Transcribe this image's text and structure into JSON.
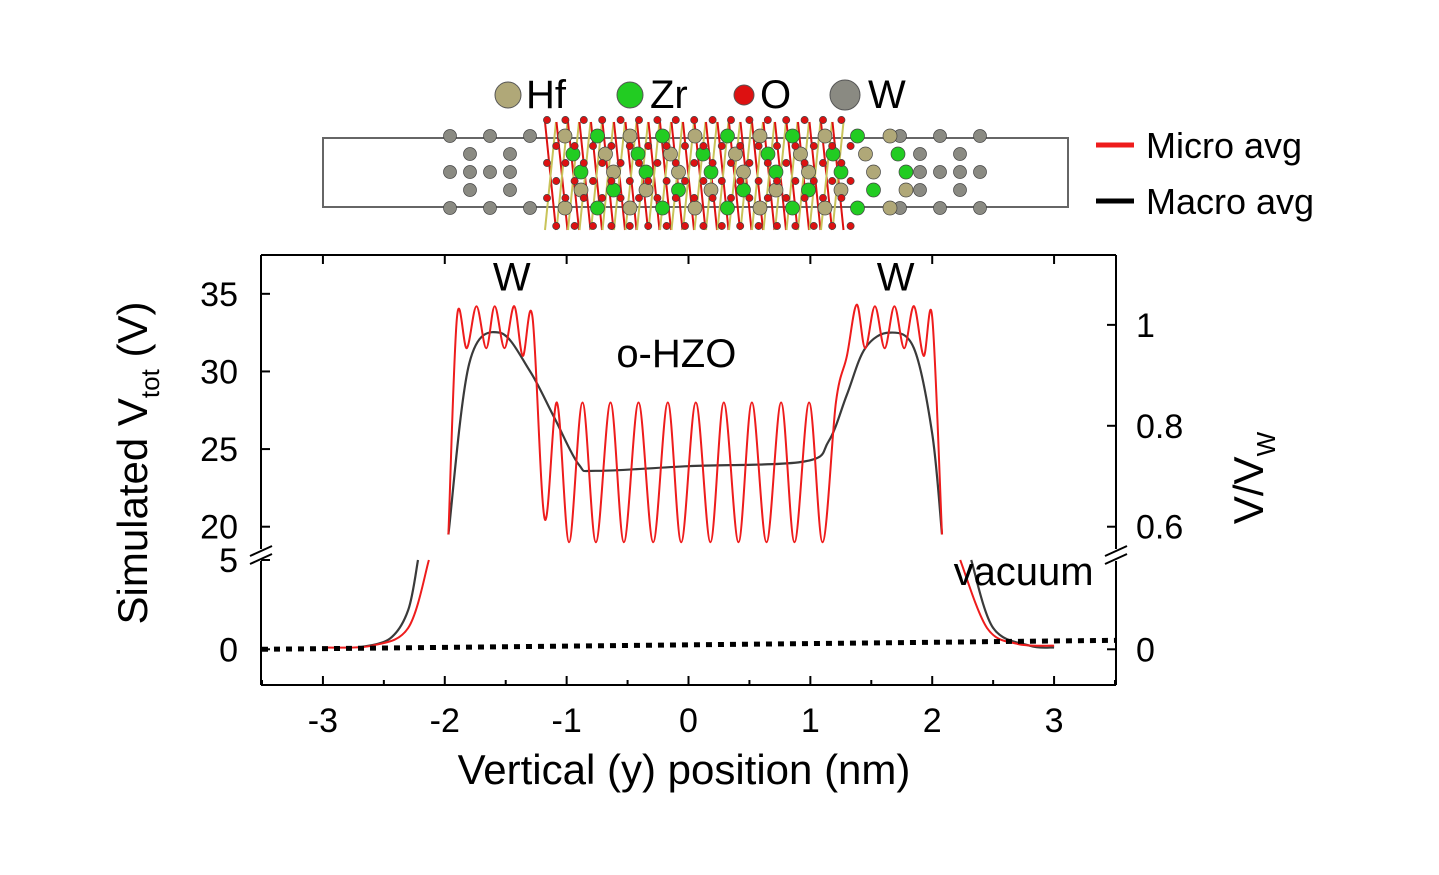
{
  "atom_legend": [
    {
      "symbol": "Hf",
      "color": "#b0a878"
    },
    {
      "symbol": "Zr",
      "color": "#22cc22"
    },
    {
      "symbol": "O",
      "color": "#dd1111"
    },
    {
      "symbol": "W",
      "color": "#8a8a82"
    }
  ],
  "series_legend": [
    {
      "name": "Micro avg",
      "color": "#ee1c1c"
    },
    {
      "name": "Macro avg",
      "color": "#000000"
    }
  ],
  "chart_data": {
    "type": "line",
    "title": "",
    "xlabel": "Vertical (y) position (nm)",
    "ylabel": "Simulated V",
    "ylabel_sub": "tot",
    "ylabel_unit": " (V)",
    "y2label": "V/V",
    "y2label_sub": "W",
    "xlim": [
      -3.5,
      3.5
    ],
    "x_ticks": [
      -3,
      -2,
      -1,
      0,
      1,
      2,
      3
    ],
    "y_lower_range": [
      -2,
      5
    ],
    "y_upper_range": [
      18.5,
      37.5
    ],
    "y_ticks_lower": [
      0,
      5
    ],
    "y_ticks_upper": [
      20,
      25,
      30,
      35
    ],
    "y2_ticks": [
      {
        "label": "0",
        "at": 0
      },
      {
        "label": "0.6",
        "at": 20
      },
      {
        "label": "0.8",
        "at": 26.5
      },
      {
        "label": "1",
        "at": 33
      }
    ],
    "axis_break": "between 5 V and 18.5 V",
    "annotations": [
      {
        "text": "W",
        "x": -1.45,
        "y": 35.2
      },
      {
        "text": "W",
        "x": 1.7,
        "y": 35.2
      },
      {
        "text": "o-HZO",
        "x": -0.1,
        "y": 30.3
      },
      {
        "text": "vacuum",
        "x": 2.75,
        "y": 3.6
      }
    ],
    "series": [
      {
        "name": "Micro avg",
        "color": "#ee1c1c",
        "description": "oscillating planar-averaged potential",
        "points": [
          {
            "x": -3.0,
            "y": 0.1
          },
          {
            "x": -2.6,
            "y": 0.2
          },
          {
            "x": -2.3,
            "y": 1.2
          },
          {
            "x": -2.13,
            "y": 5
          },
          {
            "x": -1.97,
            "y": 19.5
          },
          {
            "x": -1.9,
            "y": 33.5
          },
          {
            "x": -1.82,
            "y": 31.5
          },
          {
            "x": -1.74,
            "y": 34.2
          },
          {
            "x": -1.66,
            "y": 31.5
          },
          {
            "x": -1.59,
            "y": 34.2
          },
          {
            "x": -1.51,
            "y": 31.5
          },
          {
            "x": -1.43,
            "y": 34.2
          },
          {
            "x": -1.36,
            "y": 31.0
          },
          {
            "x": -1.28,
            "y": 33.5
          },
          {
            "x": -1.18,
            "y": 20.5
          },
          {
            "x": -1.08,
            "y": 28.0
          },
          {
            "x": -0.98,
            "y": 19.0
          },
          {
            "x": -0.87,
            "y": 28.0
          },
          {
            "x": -0.76,
            "y": 19.0
          },
          {
            "x": -0.64,
            "y": 28.0
          },
          {
            "x": -0.53,
            "y": 19.0
          },
          {
            "x": -0.41,
            "y": 28.0
          },
          {
            "x": -0.29,
            "y": 19.0
          },
          {
            "x": -0.17,
            "y": 28.0
          },
          {
            "x": -0.06,
            "y": 19.0
          },
          {
            "x": 0.06,
            "y": 28.0
          },
          {
            "x": 0.18,
            "y": 19.0
          },
          {
            "x": 0.29,
            "y": 28.0
          },
          {
            "x": 0.41,
            "y": 19.0
          },
          {
            "x": 0.52,
            "y": 28.0
          },
          {
            "x": 0.64,
            "y": 19.0
          },
          {
            "x": 0.76,
            "y": 28.0
          },
          {
            "x": 0.87,
            "y": 19.0
          },
          {
            "x": 0.99,
            "y": 28.0
          },
          {
            "x": 1.1,
            "y": 19.0
          },
          {
            "x": 1.21,
            "y": 28.0
          },
          {
            "x": 1.3,
            "y": 31.0
          },
          {
            "x": 1.38,
            "y": 34.3
          },
          {
            "x": 1.45,
            "y": 31.5
          },
          {
            "x": 1.53,
            "y": 34.2
          },
          {
            "x": 1.61,
            "y": 31.5
          },
          {
            "x": 1.69,
            "y": 34.2
          },
          {
            "x": 1.77,
            "y": 31.5
          },
          {
            "x": 1.85,
            "y": 34.2
          },
          {
            "x": 1.93,
            "y": 31.0
          },
          {
            "x": 2.0,
            "y": 33.5
          },
          {
            "x": 2.08,
            "y": 19.5
          },
          {
            "x": 2.23,
            "y": 5
          },
          {
            "x": 2.45,
            "y": 1.2
          },
          {
            "x": 2.7,
            "y": 0.3
          },
          {
            "x": 3.0,
            "y": 0.2
          }
        ]
      },
      {
        "name": "Macro avg",
        "color": "#3a3a3a",
        "description": "macroscopic average",
        "points": [
          {
            "x": -2.7,
            "y": 0.1
          },
          {
            "x": -2.45,
            "y": 0.6
          },
          {
            "x": -2.3,
            "y": 2.2
          },
          {
            "x": -2.22,
            "y": 5
          },
          {
            "x": -1.97,
            "y": 19.5
          },
          {
            "x": -1.8,
            "y": 30.5
          },
          {
            "x": -1.55,
            "y": 32.5
          },
          {
            "x": -1.3,
            "y": 30.0
          },
          {
            "x": -1.1,
            "y": 27.0
          },
          {
            "x": -0.9,
            "y": 24.0
          },
          {
            "x": -0.75,
            "y": 23.6
          },
          {
            "x": 0.0,
            "y": 23.9
          },
          {
            "x": 0.95,
            "y": 24.2
          },
          {
            "x": 1.15,
            "y": 25.5
          },
          {
            "x": 1.3,
            "y": 28.5
          },
          {
            "x": 1.45,
            "y": 31.5
          },
          {
            "x": 1.65,
            "y": 32.5
          },
          {
            "x": 1.85,
            "y": 31.5
          },
          {
            "x": 2.0,
            "y": 26.0
          },
          {
            "x": 2.08,
            "y": 19.5
          },
          {
            "x": 2.32,
            "y": 5
          },
          {
            "x": 2.5,
            "y": 1.2
          },
          {
            "x": 2.8,
            "y": 0.2
          },
          {
            "x": 3.0,
            "y": 0.1
          }
        ]
      }
    ],
    "reference_line": {
      "description": "dotted baseline",
      "from": [
        -3.5,
        0
      ],
      "to": [
        3.5,
        0.5
      ]
    }
  }
}
